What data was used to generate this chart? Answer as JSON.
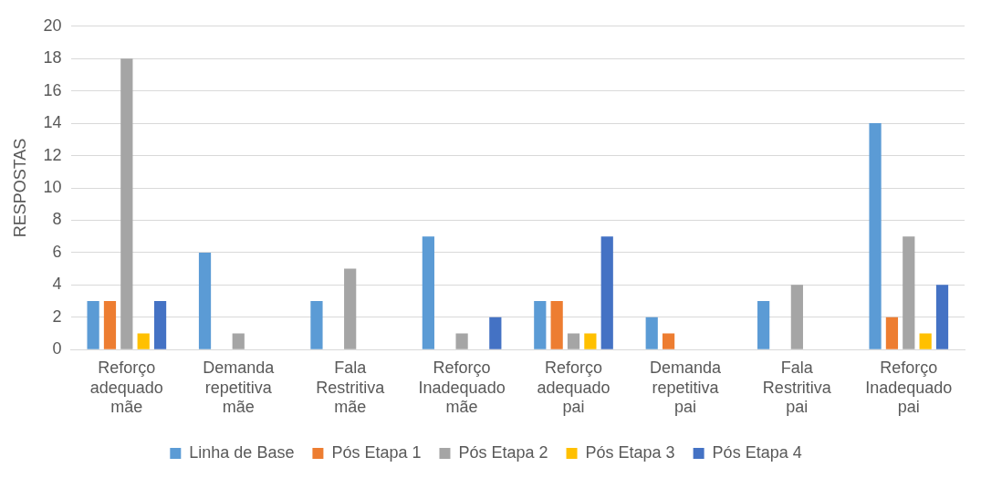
{
  "chart_data": {
    "type": "bar",
    "ylabel": "RESPOSTAS",
    "categories": [
      "Reforço adequado mãe",
      "Demanda repetitiva mãe",
      "Fala Restritiva mãe",
      "Reforço Inadequado mãe",
      "Reforço adequado pai",
      "Demanda repetitiva pai",
      "Fala Restritiva pai",
      "Reforço Inadequado pai"
    ],
    "series": [
      {
        "name": "Linha de Base",
        "color": "#5b9bd5",
        "values": [
          3,
          6,
          3,
          7,
          3,
          2,
          3,
          14
        ]
      },
      {
        "name": "Pós Etapa 1",
        "color": "#ed7d31",
        "values": [
          3,
          0,
          0,
          0,
          3,
          1,
          0,
          2
        ]
      },
      {
        "name": "Pós Etapa 2",
        "color": "#a5a5a5",
        "values": [
          18,
          1,
          5,
          1,
          1,
          0,
          4,
          7
        ]
      },
      {
        "name": "Pós Etapa 3",
        "color": "#ffc000",
        "values": [
          1,
          0,
          0,
          0,
          1,
          0,
          0,
          1
        ]
      },
      {
        "name": "Pós Etapa 4",
        "color": "#4472c4",
        "values": [
          3,
          0,
          0,
          2,
          7,
          0,
          0,
          4
        ]
      }
    ],
    "ylim": [
      0,
      20
    ],
    "yticks": [
      0,
      2,
      4,
      6,
      8,
      10,
      12,
      14,
      16,
      18,
      20
    ],
    "grid": "y",
    "legend": "bottom"
  }
}
